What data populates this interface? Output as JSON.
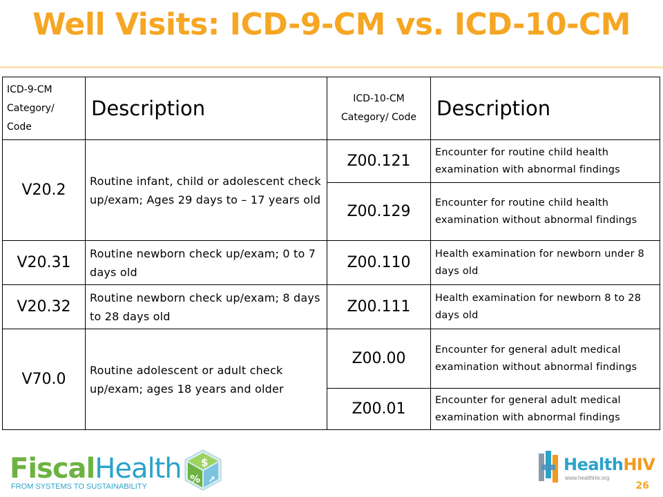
{
  "slide": {
    "title": "Well Visits:  ICD-9-CM vs. ICD-10-CM",
    "page_number": "26"
  },
  "table": {
    "headers": {
      "icd9_code": "ICD-9-CM Category/ Code",
      "icd9_desc": "Description",
      "icd10_code": "ICD-10-CM Category/ Code",
      "icd10_desc": "Description"
    },
    "rows": [
      {
        "icd9_code": "V20.2",
        "icd9_desc": "Routine infant, child or adolescent check up/exam; Ages 29 days to – 17 years old",
        "icd10_code": "Z00.121",
        "icd10_desc": "Encounter for routine child health examination with abnormal findings"
      },
      {
        "icd10_code": "Z00.129",
        "icd10_desc": "Encounter for routine child health examination without abnormal findings"
      },
      {
        "icd9_code": "V20.31",
        "icd9_desc": "Routine newborn check up/exam; 0 to 7 days old",
        "icd10_code": "Z00.110",
        "icd10_desc": "Health examination for newborn under 8 days old"
      },
      {
        "icd9_code": "V20.32",
        "icd9_desc": "Routine newborn check up/exam; 8 days to 28 days old",
        "icd10_code": "Z00.111",
        "icd10_desc": "Health examination for newborn 8 to 28 days old"
      },
      {
        "icd9_code": "V70.0",
        "icd9_desc": "Routine adolescent or adult check up/exam; ages  18 years and older",
        "icd10_code": "Z00.00",
        "icd10_desc": "Encounter for general adult medical examination without abnormal findings"
      },
      {
        "icd10_code": "Z00.01",
        "icd10_desc": "Encounter for general adult medical examination with abnormal findings"
      }
    ]
  },
  "footer": {
    "left_logo": {
      "word1": "Fiscal",
      "word2": "Health",
      "tagline": "FROM SYSTEMS TO SUSTAINABILITY",
      "icon": "fiscal-cube-icon"
    },
    "right_logo": {
      "word1": "Health",
      "word2": "HIV",
      "url": "www.healthhiv.org",
      "icon": "healthhiv-mark-icon"
    }
  },
  "colors": {
    "title": "#f5a623",
    "rule": "#fbe1b3",
    "fiscal_green": "#6db33f",
    "health_blue": "#2aa3c9",
    "hiv_orange": "#f39a1e"
  }
}
